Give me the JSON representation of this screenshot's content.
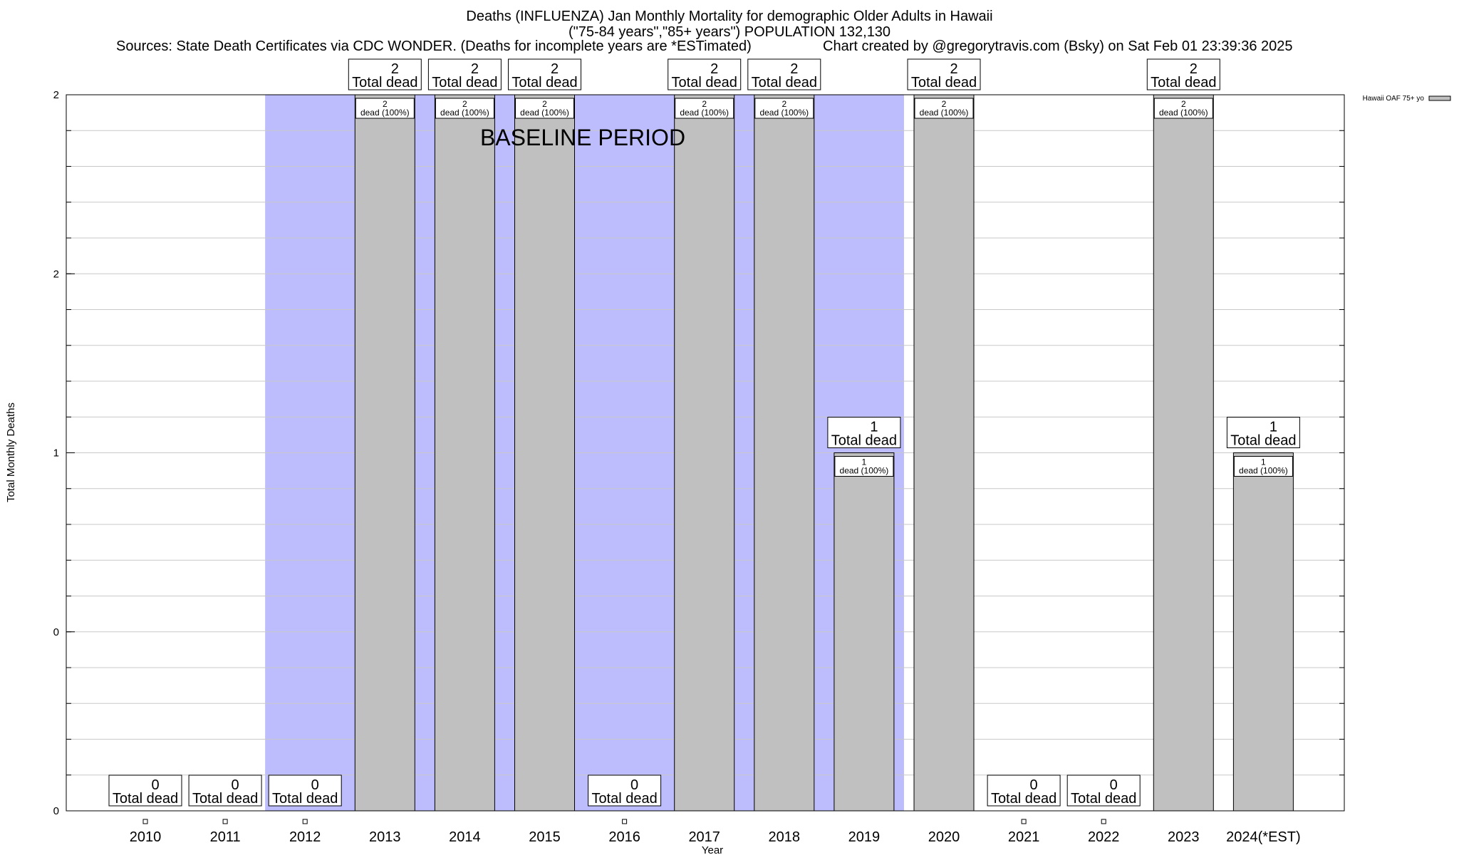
{
  "chart_data": {
    "type": "bar",
    "title_lines": [
      "Deaths (INFLUENZA) Jan Monthly Mortality for demographic Older Adults in Hawaii",
      "(\"75-84 years\",\"85+ years\") POPULATION 132,130"
    ],
    "sources_text": "Sources: State Death Certificates via CDC WONDER. (Deaths for incomplete years are *ESTimated)",
    "credit_text": "Chart created by @gregorytravis.com (Bsky) on Sat Feb 01 23:39:36 2025",
    "xlabel": "Year",
    "ylabel": "Total Monthly Deaths",
    "y_ticks": [
      {
        "value": 0,
        "label": "0"
      },
      {
        "value": 0.5,
        "label": "0"
      },
      {
        "value": 1,
        "label": "1"
      },
      {
        "value": 1.5,
        "label": "2"
      },
      {
        "value": 2,
        "label": "2"
      }
    ],
    "ylim": [
      0,
      2
    ],
    "grid": true,
    "legend": {
      "position": "top-right",
      "label": "Hawaii OAF 75+ yo"
    },
    "annotation": "BASELINE PERIOD",
    "baseline_period": [
      "2012",
      "2019"
    ],
    "categories": [
      "2010",
      "2011",
      "2012",
      "2013",
      "2014",
      "2015",
      "2016",
      "2017",
      "2018",
      "2019",
      "2020",
      "2021",
      "2022",
      "2023",
      "2024(*EST)"
    ],
    "series": [
      {
        "name": "Hawaii OAF 75+ yo",
        "values": [
          0,
          0,
          0,
          2,
          2,
          2,
          0,
          2,
          2,
          1,
          2,
          0,
          0,
          2,
          1
        ]
      }
    ],
    "total_label_suffix": "Total dead",
    "inner_label_suffix": "dead (100%)",
    "colors": {
      "bar": "#c0c0c0",
      "baseline_shade": "#bdbdfd",
      "grid": "#c8c8c8"
    }
  }
}
